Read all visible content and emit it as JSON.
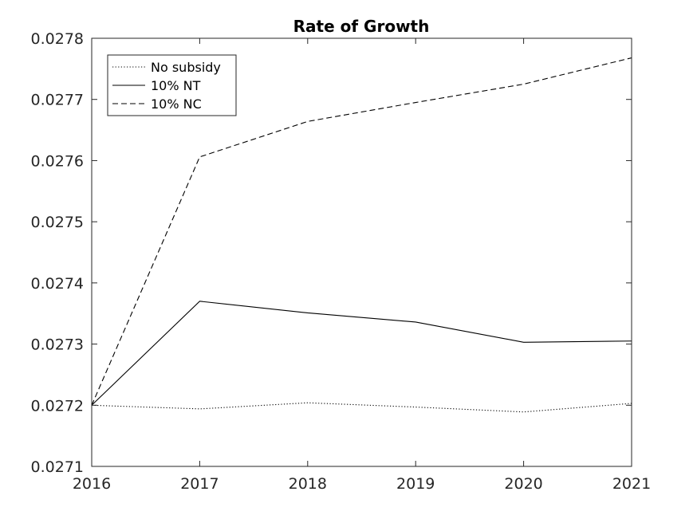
{
  "chart_data": {
    "type": "line",
    "title": "Rate of Growth",
    "xlabel": "",
    "ylabel": "",
    "x": [
      2016,
      2017,
      2018,
      2019,
      2020,
      2021
    ],
    "xlim": [
      2016,
      2021
    ],
    "ylim": [
      0.0271,
      0.0278
    ],
    "x_ticks": [
      "2016",
      "2017",
      "2018",
      "2019",
      "2020",
      "2021"
    ],
    "y_ticks": [
      "0.0271",
      "0.0272",
      "0.0273",
      "0.0274",
      "0.0275",
      "0.0276",
      "0.0277",
      "0.0278"
    ],
    "grid": false,
    "legend_position": "top-left",
    "series": [
      {
        "name": "No subsidy",
        "style": "dotted",
        "color": "#000000",
        "values": [
          0.0272,
          0.027194,
          0.027204,
          0.027197,
          0.027189,
          0.027203
        ]
      },
      {
        "name": "10% NT",
        "style": "solid",
        "color": "#000000",
        "values": [
          0.0272,
          0.02737,
          0.027351,
          0.027336,
          0.027303,
          0.027305
        ]
      },
      {
        "name": "10% NC",
        "style": "dashed",
        "color": "#000000",
        "values": [
          0.0272,
          0.027606,
          0.027664,
          0.027695,
          0.027725,
          0.027768
        ]
      }
    ]
  }
}
